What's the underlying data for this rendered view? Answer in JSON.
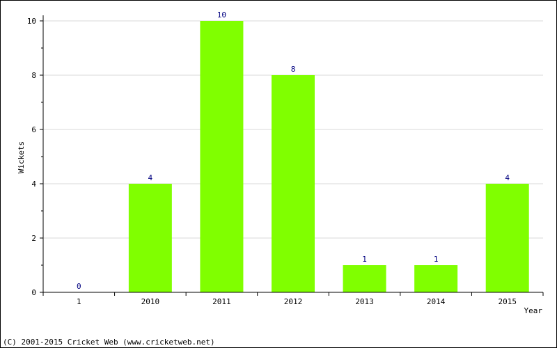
{
  "chart_data": {
    "type": "bar",
    "categories": [
      "1",
      "2010",
      "2011",
      "2012",
      "2013",
      "2014",
      "2015"
    ],
    "values": [
      0,
      4,
      10,
      8,
      1,
      1,
      4
    ],
    "title": "",
    "xlabel": "Year",
    "ylabel": "Wickets",
    "ylim": [
      0,
      10
    ],
    "yticks": [
      0,
      2,
      4,
      6,
      8,
      10
    ],
    "grid": true,
    "bar_color": "#80ff00",
    "label_color": "#000080"
  },
  "footer": {
    "copyright": "(C) 2001-2015 Cricket Web (www.cricketweb.net)"
  }
}
